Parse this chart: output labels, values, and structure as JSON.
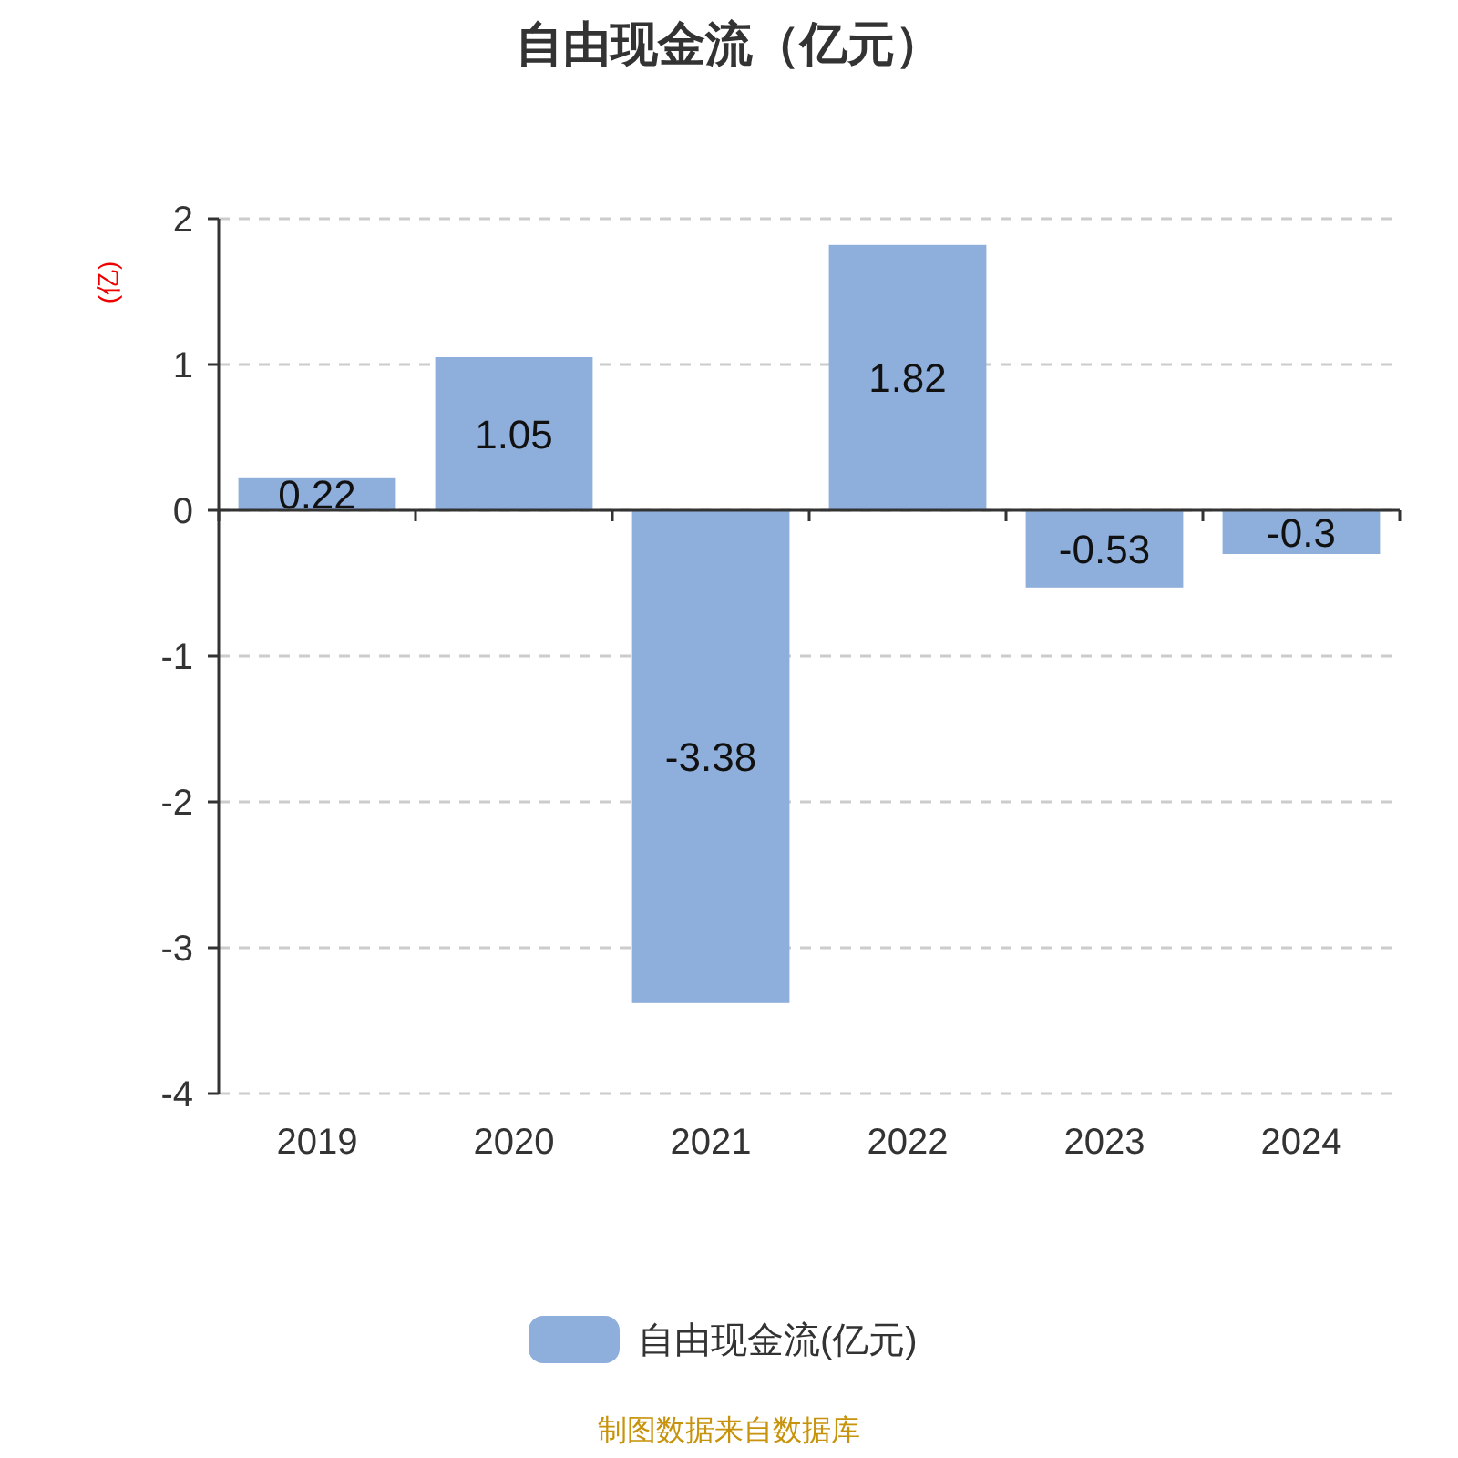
{
  "chart_data": {
    "type": "bar",
    "title": "自由现金流（亿元）",
    "ylabel": "(亿)",
    "categories": [
      "2019",
      "2020",
      "2021",
      "2022",
      "2023",
      "2024"
    ],
    "series": [
      {
        "name": "自由现金流(亿元)",
        "color": "#8eaedb",
        "values": [
          0.22,
          1.05,
          -3.38,
          1.82,
          -0.53,
          -0.3
        ]
      }
    ],
    "ylim": [
      -4,
      2
    ],
    "yticks": [
      -4,
      -3,
      -2,
      -1,
      0,
      1,
      2
    ],
    "grid": "y",
    "legend": "bottom",
    "data_labels": true,
    "annotations": [
      "制图数据来自数据库"
    ]
  }
}
